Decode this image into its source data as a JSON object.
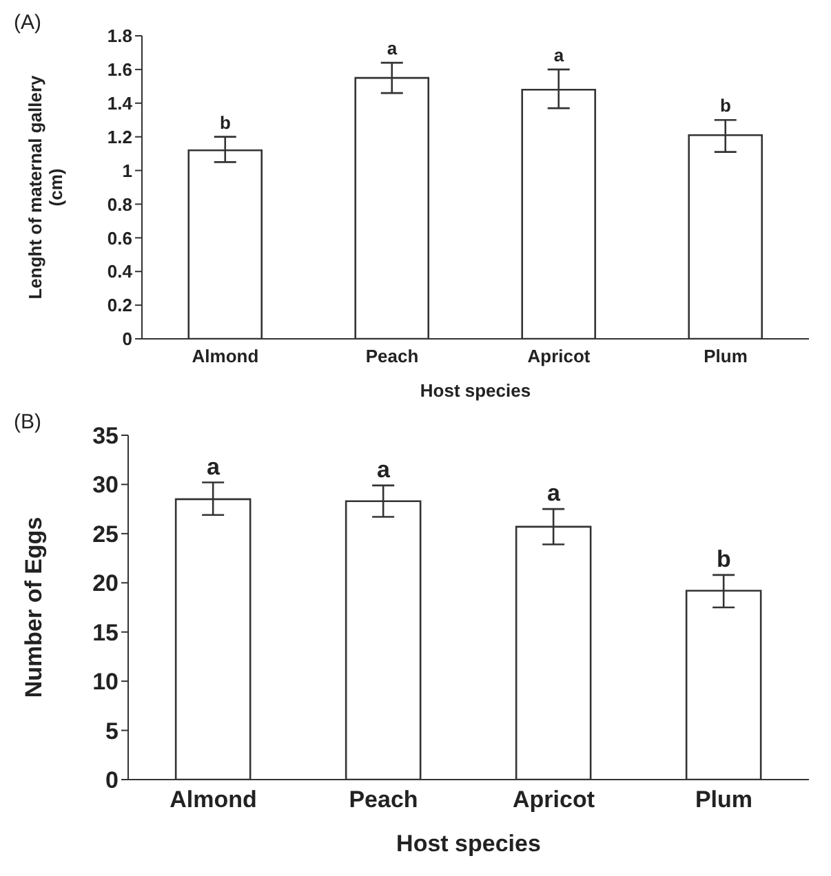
{
  "chart_data": [
    {
      "type": "bar",
      "title": "(A)",
      "xlabel": "Host species",
      "ylabel": "Lenght of maternal gallery (cm)",
      "categories": [
        "Almond",
        "Peach",
        "Apricot",
        "Plum"
      ],
      "values": [
        1.12,
        1.55,
        1.48,
        1.21
      ],
      "errors": [
        [
          1.05,
          1.2
        ],
        [
          1.46,
          1.64
        ],
        [
          1.37,
          1.6
        ],
        [
          1.11,
          1.3
        ]
      ],
      "color": "#ffffff",
      "ylim": [
        0,
        1.8
      ],
      "yticks": [
        0,
        {
          "value": 0.2,
          "label": "0.2"
        },
        {
          "value": 0.4,
          "label": "0.4"
        },
        {
          "value": 0.6,
          "label": "0.6"
        },
        {
          "value": 0.8,
          "label": "0.8"
        },
        1,
        {
          "value": 1.2,
          "label": "1.2"
        },
        {
          "value": 1.4,
          "label": "1.4"
        },
        {
          "value": 1.6,
          "label": "1.6"
        },
        {
          "value": 1.8,
          "label": "1.8"
        }
      ],
      "grid": false,
      "legend": false,
      "annotations": [
        "b",
        "a",
        "a",
        "b"
      ]
    },
    {
      "type": "bar",
      "title": "(B)",
      "xlabel": "Host species",
      "ylabel": "Number of Eggs",
      "categories": [
        "Almond",
        "Peach",
        "Apricot",
        "Plum"
      ],
      "values": [
        28.5,
        28.3,
        25.7,
        19.2
      ],
      "errors": [
        [
          26.9,
          30.2
        ],
        [
          26.7,
          29.9
        ],
        [
          23.9,
          27.5
        ],
        [
          17.5,
          20.8
        ]
      ],
      "color": "#ffffff",
      "ylim": [
        0,
        35
      ],
      "yticks": [
        0,
        5,
        10,
        15,
        20,
        25,
        30,
        35
      ],
      "grid": false,
      "legend": false,
      "annotations": [
        "a",
        "a",
        "a",
        "b"
      ]
    }
  ]
}
